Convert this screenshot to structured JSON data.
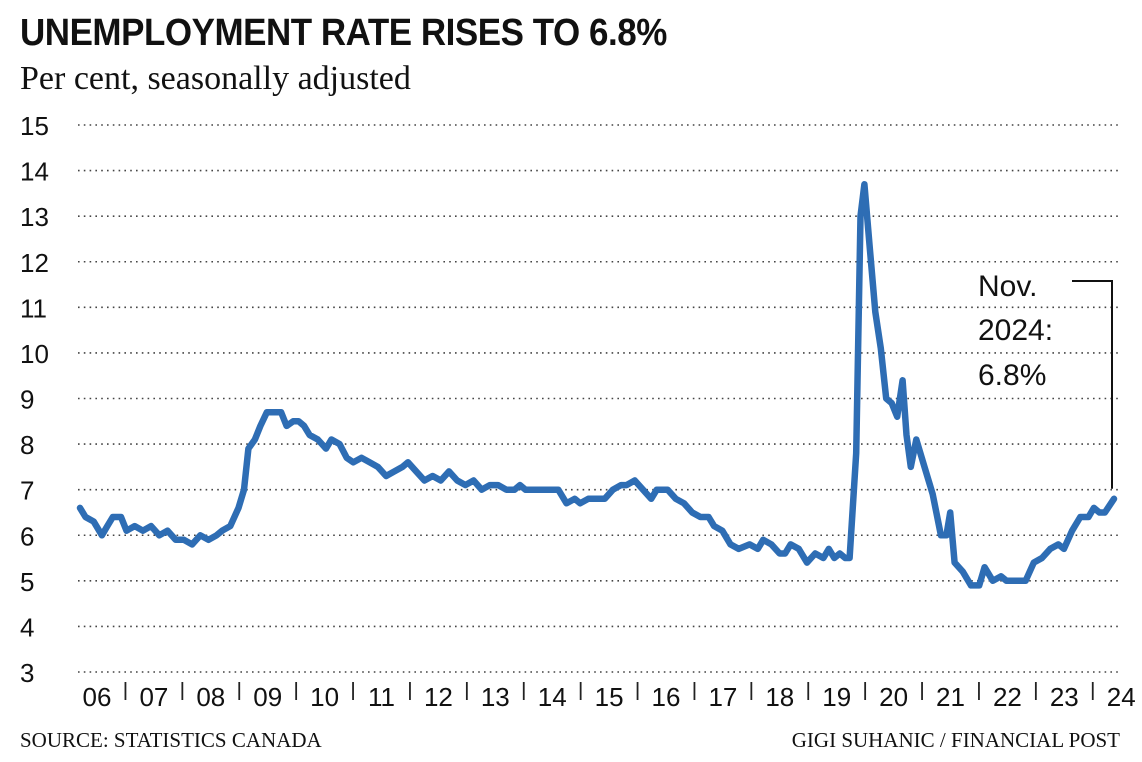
{
  "chart_data": {
    "type": "line",
    "title": "UNEMPLOYMENT RATE RISES TO 6.8%",
    "subtitle": "Per cent, seasonally adjusted",
    "source": "SOURCE: STATISTICS CANADA",
    "credit": "GIGI SUHANIC / FINANCIAL POST",
    "ylim": [
      3,
      15
    ],
    "yticks": [
      "3",
      "4",
      "5",
      "6",
      "7",
      "8",
      "9",
      "10",
      "11",
      "12",
      "13",
      "14",
      "15"
    ],
    "xlim": [
      2006.0,
      2024.917
    ],
    "xticks": [
      {
        "label": "06",
        "year": 2006
      },
      {
        "label": "07",
        "year": 2007
      },
      {
        "label": "08",
        "year": 2008
      },
      {
        "label": "09",
        "year": 2009
      },
      {
        "label": "10",
        "year": 2010
      },
      {
        "label": "11",
        "year": 2011
      },
      {
        "label": "12",
        "year": 2012
      },
      {
        "label": "13",
        "year": 2013
      },
      {
        "label": "14",
        "year": 2014
      },
      {
        "label": "15",
        "year": 2015
      },
      {
        "label": "16",
        "year": 2016
      },
      {
        "label": "17",
        "year": 2017
      },
      {
        "label": "18",
        "year": 2018
      },
      {
        "label": "19",
        "year": 2019
      },
      {
        "label": "20",
        "year": 2020
      },
      {
        "label": "21",
        "year": 2021
      },
      {
        "label": "22",
        "year": 2022
      },
      {
        "label": "23",
        "year": 2023
      },
      {
        "label": "24",
        "year": 2024
      }
    ],
    "grid": true,
    "series": [
      {
        "name": "Unemployment rate",
        "color": "#2e6db4",
        "points": [
          [
            2006.0,
            6.6
          ],
          [
            2006.1,
            6.4
          ],
          [
            2006.25,
            6.3
          ],
          [
            2006.4,
            6.0
          ],
          [
            2006.5,
            6.2
          ],
          [
            2006.6,
            6.4
          ],
          [
            2006.75,
            6.4
          ],
          [
            2006.85,
            6.1
          ],
          [
            2007.0,
            6.2
          ],
          [
            2007.15,
            6.1
          ],
          [
            2007.3,
            6.2
          ],
          [
            2007.45,
            6.0
          ],
          [
            2007.6,
            6.1
          ],
          [
            2007.75,
            5.9
          ],
          [
            2007.9,
            5.9
          ],
          [
            2008.05,
            5.8
          ],
          [
            2008.2,
            6.0
          ],
          [
            2008.35,
            5.9
          ],
          [
            2008.5,
            6.0
          ],
          [
            2008.6,
            6.1
          ],
          [
            2008.75,
            6.2
          ],
          [
            2008.9,
            6.6
          ],
          [
            2009.0,
            7.0
          ],
          [
            2009.08,
            7.9
          ],
          [
            2009.2,
            8.1
          ],
          [
            2009.3,
            8.4
          ],
          [
            2009.42,
            8.7
          ],
          [
            2009.55,
            8.7
          ],
          [
            2009.68,
            8.7
          ],
          [
            2009.78,
            8.4
          ],
          [
            2009.9,
            8.5
          ],
          [
            2010.0,
            8.5
          ],
          [
            2010.1,
            8.4
          ],
          [
            2010.2,
            8.2
          ],
          [
            2010.35,
            8.1
          ],
          [
            2010.5,
            7.9
          ],
          [
            2010.6,
            8.1
          ],
          [
            2010.75,
            8.0
          ],
          [
            2010.88,
            7.7
          ],
          [
            2011.0,
            7.6
          ],
          [
            2011.15,
            7.7
          ],
          [
            2011.3,
            7.6
          ],
          [
            2011.45,
            7.5
          ],
          [
            2011.6,
            7.3
          ],
          [
            2011.75,
            7.4
          ],
          [
            2011.9,
            7.5
          ],
          [
            2012.0,
            7.6
          ],
          [
            2012.15,
            7.4
          ],
          [
            2012.3,
            7.2
          ],
          [
            2012.45,
            7.3
          ],
          [
            2012.6,
            7.2
          ],
          [
            2012.75,
            7.4
          ],
          [
            2012.9,
            7.2
          ],
          [
            2013.05,
            7.1
          ],
          [
            2013.2,
            7.2
          ],
          [
            2013.35,
            7.0
          ],
          [
            2013.5,
            7.1
          ],
          [
            2013.65,
            7.1
          ],
          [
            2013.8,
            7.0
          ],
          [
            2013.95,
            7.0
          ],
          [
            2014.05,
            7.1
          ],
          [
            2014.15,
            7.0
          ],
          [
            2014.35,
            7.0
          ],
          [
            2014.55,
            7.0
          ],
          [
            2014.75,
            7.0
          ],
          [
            2014.9,
            6.7
          ],
          [
            2015.05,
            6.8
          ],
          [
            2015.15,
            6.7
          ],
          [
            2015.3,
            6.8
          ],
          [
            2015.45,
            6.8
          ],
          [
            2015.6,
            6.8
          ],
          [
            2015.75,
            7.0
          ],
          [
            2015.9,
            7.1
          ],
          [
            2016.0,
            7.1
          ],
          [
            2016.15,
            7.2
          ],
          [
            2016.3,
            7.0
          ],
          [
            2016.45,
            6.8
          ],
          [
            2016.55,
            7.0
          ],
          [
            2016.75,
            7.0
          ],
          [
            2016.9,
            6.8
          ],
          [
            2017.05,
            6.7
          ],
          [
            2017.2,
            6.5
          ],
          [
            2017.35,
            6.4
          ],
          [
            2017.5,
            6.4
          ],
          [
            2017.6,
            6.2
          ],
          [
            2017.75,
            6.1
          ],
          [
            2017.9,
            5.8
          ],
          [
            2018.05,
            5.7
          ],
          [
            2018.25,
            5.8
          ],
          [
            2018.4,
            5.7
          ],
          [
            2018.5,
            5.9
          ],
          [
            2018.65,
            5.8
          ],
          [
            2018.8,
            5.6
          ],
          [
            2018.9,
            5.6
          ],
          [
            2019.0,
            5.8
          ],
          [
            2019.15,
            5.7
          ],
          [
            2019.3,
            5.4
          ],
          [
            2019.45,
            5.6
          ],
          [
            2019.6,
            5.5
          ],
          [
            2019.7,
            5.7
          ],
          [
            2019.8,
            5.5
          ],
          [
            2019.9,
            5.6
          ],
          [
            2020.0,
            5.5
          ],
          [
            2020.08,
            5.5
          ],
          [
            2020.2,
            7.8
          ],
          [
            2020.28,
            13.0
          ],
          [
            2020.35,
            13.7
          ],
          [
            2020.45,
            12.3
          ],
          [
            2020.55,
            10.9
          ],
          [
            2020.65,
            10.1
          ],
          [
            2020.75,
            9.0
          ],
          [
            2020.85,
            8.9
          ],
          [
            2020.95,
            8.6
          ],
          [
            2021.05,
            9.4
          ],
          [
            2021.12,
            8.2
          ],
          [
            2021.2,
            7.5
          ],
          [
            2021.3,
            8.1
          ],
          [
            2021.45,
            7.5
          ],
          [
            2021.6,
            6.9
          ],
          [
            2021.75,
            6.0
          ],
          [
            2021.85,
            6.0
          ],
          [
            2021.92,
            6.5
          ],
          [
            2022.0,
            5.4
          ],
          [
            2022.15,
            5.2
          ],
          [
            2022.3,
            4.9
          ],
          [
            2022.45,
            4.9
          ],
          [
            2022.55,
            5.3
          ],
          [
            2022.7,
            5.0
          ],
          [
            2022.85,
            5.1
          ],
          [
            2022.95,
            5.0
          ],
          [
            2023.1,
            5.0
          ],
          [
            2023.3,
            5.0
          ],
          [
            2023.45,
            5.4
          ],
          [
            2023.6,
            5.5
          ],
          [
            2023.75,
            5.7
          ],
          [
            2023.9,
            5.8
          ],
          [
            2024.0,
            5.7
          ],
          [
            2024.15,
            6.1
          ],
          [
            2024.3,
            6.4
          ],
          [
            2024.45,
            6.4
          ],
          [
            2024.55,
            6.6
          ],
          [
            2024.65,
            6.5
          ],
          [
            2024.75,
            6.5
          ],
          [
            2024.917,
            6.8
          ]
        ]
      }
    ],
    "annotation": {
      "lines": [
        "Nov.",
        "2024:",
        "6.8%"
      ],
      "value": 6.8
    }
  }
}
